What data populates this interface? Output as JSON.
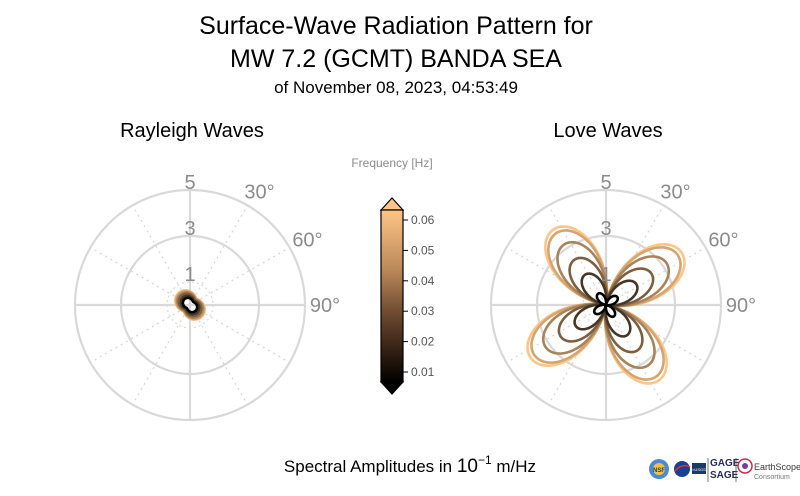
{
  "title": {
    "line1": "Surface-Wave Radiation Pattern for",
    "line2": "MW 7.2 (GCMT) BANDA SEA",
    "line3": "of November 08, 2023, 04:53:49"
  },
  "colors": {
    "low_freq": "#000000",
    "high_freq": "#ffc586",
    "grid": "#d9d9d9",
    "tick_text": "#8c8c8c"
  },
  "chart_data": [
    {
      "type": "polar-line",
      "title": "Rayleigh Waves",
      "r_ticks": [
        "1",
        "3",
        "5"
      ],
      "r_max": 5,
      "theta_ticks": [
        "30°",
        "60°",
        "90°"
      ],
      "grid": true,
      "pattern": "two-lobe",
      "lobe_axis_deg": 315,
      "series": [
        {
          "frequency": 0.01,
          "max_amplitude": 0.35
        },
        {
          "frequency": 0.02,
          "max_amplitude": 0.45
        },
        {
          "frequency": 0.03,
          "max_amplitude": 0.55
        },
        {
          "frequency": 0.04,
          "max_amplitude": 0.62
        },
        {
          "frequency": 0.05,
          "max_amplitude": 0.68
        },
        {
          "frequency": 0.06,
          "max_amplitude": 0.72
        }
      ]
    },
    {
      "type": "polar-line",
      "title": "Love Waves",
      "r_ticks": [
        "1",
        "3",
        "5"
      ],
      "r_max": 5,
      "theta_ticks": [
        "30°",
        "60°",
        "90°"
      ],
      "grid": true,
      "pattern": "four-lobe",
      "lobe_axes_deg": [
        325,
        55,
        145,
        235
      ],
      "series": [
        {
          "frequency": 0.01,
          "max_amplitude": 0.6
        },
        {
          "frequency": 0.02,
          "max_amplitude": 1.6
        },
        {
          "frequency": 0.03,
          "max_amplitude": 2.4
        },
        {
          "frequency": 0.04,
          "max_amplitude": 3.2
        },
        {
          "frequency": 0.05,
          "max_amplitude": 3.8
        },
        {
          "frequency": 0.06,
          "max_amplitude": 4.0
        }
      ]
    }
  ],
  "colorbar": {
    "label": "Frequency [Hz]",
    "min": 0.01,
    "max": 0.06,
    "ticks": [
      "0.06",
      "0.05",
      "0.04",
      "0.03",
      "0.02",
      "0.01"
    ]
  },
  "footer": {
    "label_prefix": "Spectral Amplitudes in ",
    "label_base": "10",
    "label_exp": "−1",
    "label_suffix": " m/Hz"
  },
  "logos": {
    "nsf": "NSF",
    "usgs": "≈USGS",
    "gage": "GAGE",
    "sage": "SAGE",
    "earthscope": "EarthScope",
    "consortium": "Consortium"
  }
}
